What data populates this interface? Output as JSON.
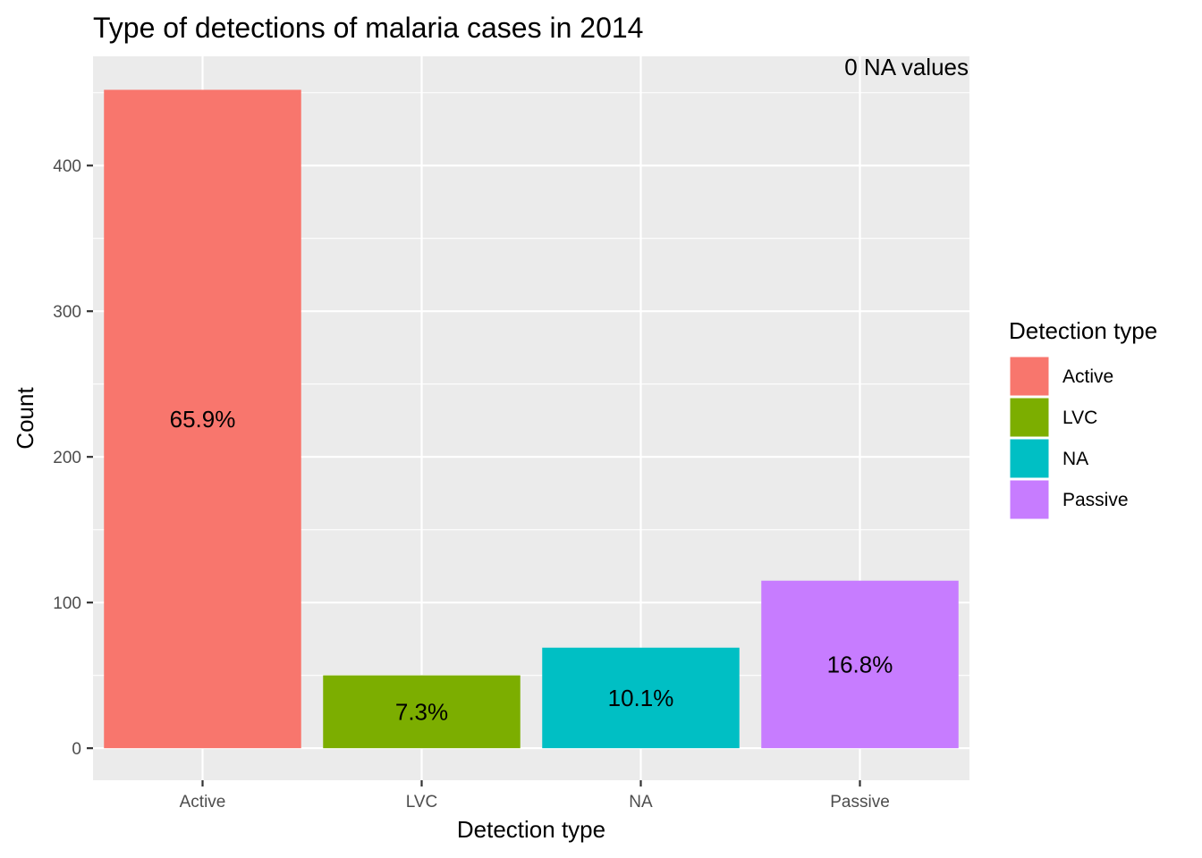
{
  "chart_data": {
    "type": "bar",
    "title": "Type of detections of malaria cases in 2014",
    "annotation": "0 NA values",
    "xlabel": "Detection type",
    "ylabel": "Count",
    "categories": [
      "Active",
      "LVC",
      "NA",
      "Passive"
    ],
    "values": [
      452,
      50,
      69,
      115
    ],
    "bar_labels": [
      "65.9%",
      "7.3%",
      "10.1%",
      "16.8%"
    ],
    "colors": [
      "#F8766D",
      "#7CAE00",
      "#00BFC4",
      "#C77CFF"
    ],
    "ylim": [
      -22,
      475
    ],
    "yticks": [
      0,
      100,
      200,
      300,
      400
    ],
    "ytick_labels": [
      "0",
      "100",
      "200",
      "300",
      "400"
    ],
    "grid": true,
    "legend": {
      "title": "Detection type",
      "position": "right",
      "entries": [
        "Active",
        "LVC",
        "NA",
        "Passive"
      ]
    }
  }
}
